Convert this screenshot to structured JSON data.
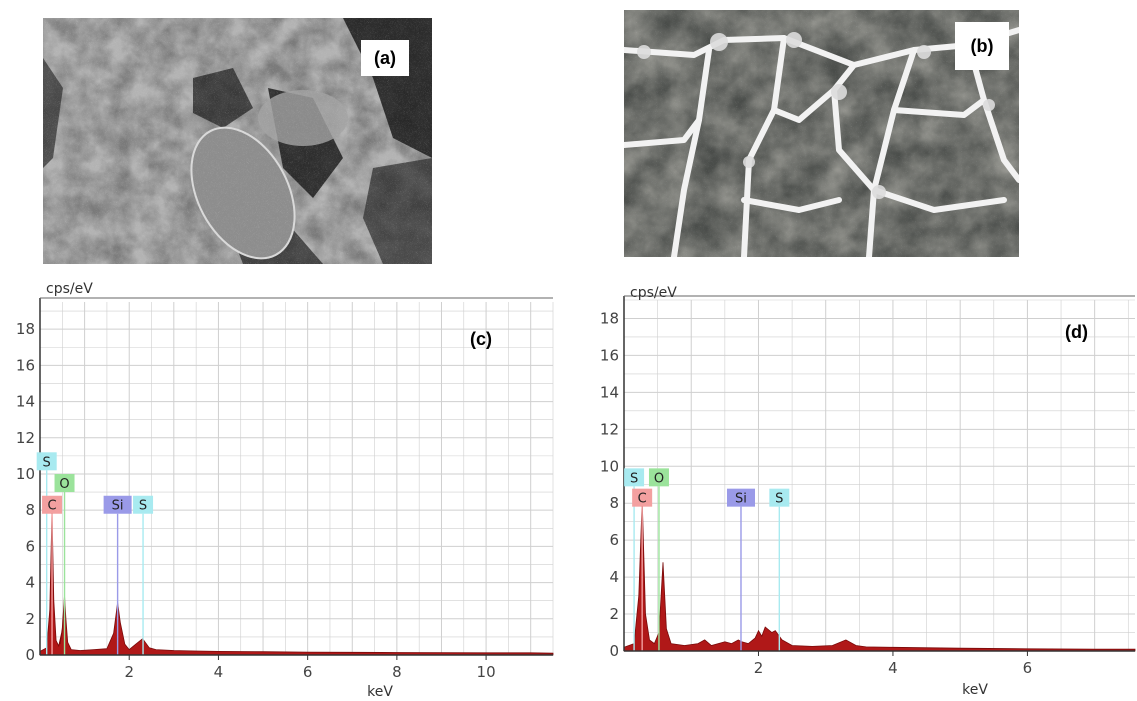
{
  "panels": {
    "a": {
      "label": "(a)"
    },
    "b": {
      "label": "(b)"
    }
  },
  "colors": {
    "spectrum_fill": "#b01818",
    "grid": "#cfcfcf",
    "C": "#f3a0a0",
    "O": "#9be39b",
    "Si": "#9a9ae8",
    "S": "#a8eaf0"
  },
  "chart_data": [
    {
      "type": "area",
      "panel_label": "(c)",
      "ylabel": "cps/eV",
      "xlabel": "keV",
      "ylim": [
        0,
        19.5
      ],
      "xlim": [
        0,
        11.5
      ],
      "yticks": [
        0,
        2,
        4,
        6,
        8,
        10,
        12,
        14,
        16,
        18
      ],
      "xticks": [
        2,
        4,
        6,
        8,
        10
      ],
      "xtick_labels": [
        "2",
        "4",
        "6",
        "8",
        "10"
      ],
      "grid": true,
      "spectrum": {
        "x": [
          0.0,
          0.15,
          0.22,
          0.27,
          0.31,
          0.36,
          0.42,
          0.5,
          0.45,
          0.5,
          0.55,
          0.58,
          0.62,
          0.7,
          0.9,
          1.2,
          1.5,
          1.65,
          1.74,
          1.8,
          1.9,
          2.0,
          2.15,
          2.3,
          2.45,
          2.6,
          3.0,
          3.5,
          4.0,
          5.0,
          6.0,
          7.0,
          8.0,
          9.0,
          10.0,
          11.0,
          11.5
        ],
        "y": [
          0.2,
          0.4,
          2.5,
          8.0,
          3.0,
          0.8,
          0.5,
          1.4,
          0.6,
          1.5,
          3.3,
          2.0,
          0.7,
          0.3,
          0.25,
          0.3,
          0.35,
          1.2,
          2.9,
          1.8,
          0.6,
          0.3,
          0.6,
          0.9,
          0.4,
          0.3,
          0.25,
          0.22,
          0.2,
          0.18,
          0.16,
          0.15,
          0.14,
          0.13,
          0.12,
          0.12,
          0.1
        ]
      },
      "elements": [
        {
          "symbol": "S",
          "energy": 0.15,
          "label_y": 10.7,
          "color": "#a8eaf0"
        },
        {
          "symbol": "O",
          "energy": 0.55,
          "label_y": 9.5,
          "color": "#9be39b"
        },
        {
          "symbol": "C",
          "energy": 0.27,
          "label_y": 8.3,
          "color": "#f3a0a0"
        },
        {
          "symbol": "Si",
          "energy": 1.74,
          "label_y": 8.3,
          "color": "#9a9ae8"
        },
        {
          "symbol": "S",
          "energy": 2.31,
          "label_y": 8.3,
          "color": "#a8eaf0"
        }
      ]
    },
    {
      "type": "area",
      "panel_label": "(d)",
      "ylabel": "cps/eV",
      "xlabel": "keV",
      "ylim": [
        0,
        19.0
      ],
      "xlim": [
        0,
        7.6
      ],
      "yticks": [
        0,
        2,
        4,
        6,
        8,
        10,
        12,
        14,
        16,
        18
      ],
      "ytick_labels": [
        "0",
        "2",
        "4",
        "6",
        "8",
        "10",
        "12",
        "14",
        "16",
        "18"
      ],
      "xticks": [
        2,
        4,
        6
      ],
      "xtick_labels": [
        "2",
        "4",
        "6"
      ],
      "grid": true,
      "spectrum": {
        "x": [
          0.0,
          0.15,
          0.22,
          0.27,
          0.32,
          0.38,
          0.45,
          0.52,
          0.58,
          0.63,
          0.7,
          0.9,
          1.1,
          1.2,
          1.3,
          1.5,
          1.6,
          1.7,
          1.75,
          1.85,
          1.95,
          2.0,
          2.05,
          2.1,
          2.2,
          2.25,
          2.35,
          2.5,
          2.8,
          3.1,
          3.3,
          3.45,
          3.6,
          4.0,
          5.0,
          6.0,
          7.0,
          7.6
        ],
        "y": [
          0.2,
          0.4,
          3.0,
          8.2,
          2.0,
          0.6,
          0.4,
          1.0,
          4.8,
          1.2,
          0.4,
          0.3,
          0.4,
          0.6,
          0.3,
          0.5,
          0.4,
          0.6,
          0.5,
          0.4,
          0.7,
          1.1,
          0.8,
          1.3,
          1.0,
          1.1,
          0.6,
          0.3,
          0.25,
          0.3,
          0.6,
          0.3,
          0.22,
          0.2,
          0.15,
          0.12,
          0.1,
          0.1
        ]
      },
      "elements": [
        {
          "symbol": "S",
          "energy": 0.15,
          "label_y": 9.4,
          "color": "#a8eaf0"
        },
        {
          "symbol": "O",
          "energy": 0.52,
          "label_y": 9.4,
          "color": "#9be39b"
        },
        {
          "symbol": "C",
          "energy": 0.27,
          "label_y": 8.3,
          "color": "#f3a0a0"
        },
        {
          "symbol": "Si",
          "energy": 1.74,
          "label_y": 8.3,
          "color": "#9a9ae8"
        },
        {
          "symbol": "S",
          "energy": 2.31,
          "label_y": 8.3,
          "color": "#a8eaf0"
        }
      ]
    }
  ]
}
